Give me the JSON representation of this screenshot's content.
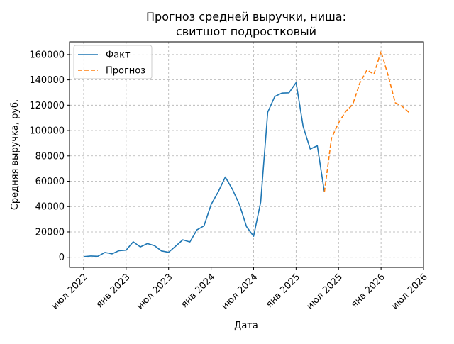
{
  "chart_data": {
    "type": "line",
    "title": [
      "Прогноз средней выручки, ниша:",
      "свитшот подростковый"
    ],
    "xlabel": "Дата",
    "ylabel": "Средняя выручка, руб.",
    "x_ticks": [
      {
        "date": "2022-07-01",
        "label": "июл 2022"
      },
      {
        "date": "2023-01-01",
        "label": "янв 2023"
      },
      {
        "date": "2023-07-01",
        "label": "июл 2023"
      },
      {
        "date": "2024-01-01",
        "label": "янв 2024"
      },
      {
        "date": "2024-07-01",
        "label": "июл 2024"
      },
      {
        "date": "2025-01-01",
        "label": "янв 2025"
      },
      {
        "date": "2025-07-01",
        "label": "июл 2025"
      },
      {
        "date": "2026-01-01",
        "label": "янв 2026"
      },
      {
        "date": "2026-07-01",
        "label": "июл 2026"
      }
    ],
    "y_ticks": [
      0,
      20000,
      40000,
      60000,
      80000,
      100000,
      120000,
      140000,
      160000
    ],
    "xlim": [
      "2022-05-01",
      "2026-07-01"
    ],
    "ylim": [
      -8000,
      170000
    ],
    "grid": true,
    "legend_position": "top-left",
    "series": [
      {
        "name": "Факт",
        "color": "#1f77b4",
        "style": "solid",
        "points": [
          {
            "x": "2022-07-01",
            "y": 500
          },
          {
            "x": "2022-08-01",
            "y": 1000
          },
          {
            "x": "2022-09-01",
            "y": 800
          },
          {
            "x": "2022-10-01",
            "y": 3800
          },
          {
            "x": "2022-11-01",
            "y": 2700
          },
          {
            "x": "2022-12-01",
            "y": 5200
          },
          {
            "x": "2023-01-01",
            "y": 5600
          },
          {
            "x": "2023-02-01",
            "y": 12200
          },
          {
            "x": "2023-03-01",
            "y": 8200
          },
          {
            "x": "2023-04-01",
            "y": 10800
          },
          {
            "x": "2023-05-01",
            "y": 9200
          },
          {
            "x": "2023-06-01",
            "y": 5000
          },
          {
            "x": "2023-07-01",
            "y": 3900
          },
          {
            "x": "2023-08-01",
            "y": 8800
          },
          {
            "x": "2023-09-01",
            "y": 13800
          },
          {
            "x": "2023-10-01",
            "y": 12100
          },
          {
            "x": "2023-11-01",
            "y": 21600
          },
          {
            "x": "2023-12-01",
            "y": 24800
          },
          {
            "x": "2024-01-01",
            "y": 41600
          },
          {
            "x": "2024-02-01",
            "y": 51600
          },
          {
            "x": "2024-03-01",
            "y": 63300
          },
          {
            "x": "2024-04-01",
            "y": 53800
          },
          {
            "x": "2024-05-01",
            "y": 41600
          },
          {
            "x": "2024-06-01",
            "y": 24200
          },
          {
            "x": "2024-07-01",
            "y": 16600
          },
          {
            "x": "2024-08-01",
            "y": 43600
          },
          {
            "x": "2024-09-01",
            "y": 114500
          },
          {
            "x": "2024-10-01",
            "y": 126900
          },
          {
            "x": "2024-11-01",
            "y": 129600
          },
          {
            "x": "2024-12-01",
            "y": 129800
          },
          {
            "x": "2025-01-01",
            "y": 137800
          },
          {
            "x": "2025-02-01",
            "y": 103200
          },
          {
            "x": "2025-03-01",
            "y": 85400
          },
          {
            "x": "2025-04-01",
            "y": 88000
          },
          {
            "x": "2025-05-01",
            "y": 51500
          }
        ]
      },
      {
        "name": "Прогноз",
        "color": "#ff7f0e",
        "style": "dashed",
        "points": [
          {
            "x": "2025-05-01",
            "y": 51500
          },
          {
            "x": "2025-06-01",
            "y": 94000
          },
          {
            "x": "2025-07-01",
            "y": 106000
          },
          {
            "x": "2025-08-01",
            "y": 115000
          },
          {
            "x": "2025-09-01",
            "y": 120500
          },
          {
            "x": "2025-10-01",
            "y": 137500
          },
          {
            "x": "2025-11-01",
            "y": 147800
          },
          {
            "x": "2025-12-01",
            "y": 144500
          },
          {
            "x": "2026-01-01",
            "y": 162500
          },
          {
            "x": "2026-02-01",
            "y": 143500
          },
          {
            "x": "2026-03-01",
            "y": 122000
          },
          {
            "x": "2026-04-01",
            "y": 119000
          },
          {
            "x": "2026-05-01",
            "y": 114000
          }
        ]
      }
    ]
  }
}
